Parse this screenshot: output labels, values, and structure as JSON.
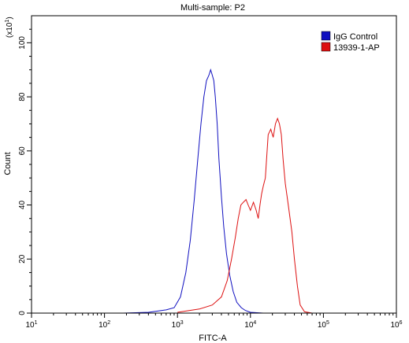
{
  "chart_data": {
    "type": "line",
    "title": "Multi-sample: P2",
    "xlabel": "FITC-A",
    "ylabel": "Count",
    "y_multiplier": "(x10",
    "y_multiplier_exp": "1",
    "y_multiplier_close": ")",
    "x_scale": "log",
    "xlim": [
      10,
      1000000
    ],
    "ylim": [
      0,
      110
    ],
    "x_ticks": [
      {
        "value": 10,
        "base": "10",
        "exp": "1"
      },
      {
        "value": 100,
        "base": "10",
        "exp": "2"
      },
      {
        "value": 1000,
        "base": "10",
        "exp": "3"
      },
      {
        "value": 10000,
        "base": "10",
        "exp": "4"
      },
      {
        "value": 100000,
        "base": "10",
        "exp": "5"
      },
      {
        "value": 1000000,
        "base": "10",
        "exp": "6"
      }
    ],
    "y_ticks": [
      0,
      20,
      40,
      60,
      80,
      100
    ],
    "grid": false,
    "legend_position": "top-right",
    "series": [
      {
        "name": "IgG Control",
        "color": "#1010c0",
        "x": [
          180,
          400,
          700,
          900,
          1100,
          1300,
          1500,
          1700,
          1900,
          2100,
          2300,
          2500,
          2700,
          2850,
          3000,
          3150,
          3300,
          3500,
          3700,
          4000,
          4300,
          4700,
          5200,
          5800,
          6500,
          7500,
          8500,
          10000,
          15000
        ],
        "y": [
          0,
          0.3,
          1.2,
          2,
          6,
          15,
          27,
          42,
          57,
          70,
          80,
          86,
          88,
          90,
          88,
          86,
          80,
          70,
          57,
          43,
          32,
          22,
          14,
          8,
          4,
          2,
          1,
          0.3,
          0
        ]
      },
      {
        "name": "13939-1-AP",
        "color": "#dd1010",
        "x": [
          1000,
          2000,
          3000,
          4000,
          4800,
          5500,
          6200,
          6800,
          7400,
          8000,
          8700,
          9300,
          10000,
          11000,
          12000,
          12800,
          13500,
          14200,
          15000,
          16000,
          17500,
          19000,
          20500,
          22000,
          23500,
          25000,
          26500,
          28000,
          30000,
          33000,
          37000,
          40000,
          44000,
          48000,
          55000,
          70000
        ],
        "y": [
          0.3,
          1.5,
          3,
          6,
          12,
          20,
          28,
          35,
          40,
          41,
          42,
          40,
          38,
          41,
          38,
          35,
          40,
          44,
          47,
          50,
          66,
          68,
          65,
          70,
          72,
          70,
          66,
          57,
          48,
          40,
          30,
          20,
          10,
          3,
          0.5,
          0
        ]
      }
    ]
  }
}
